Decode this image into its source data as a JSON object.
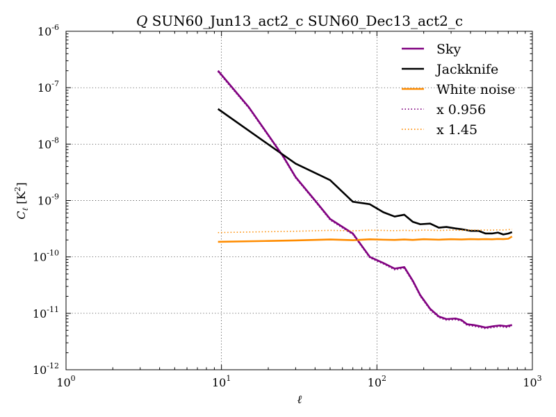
{
  "chart_data": {
    "type": "line",
    "title": {
      "symbol": "Q",
      "text": " SUN60_Jun13_act2_c SUN60_Dec13_act2_c"
    },
    "xlabel": "ℓ",
    "ylabel": {
      "base": "C",
      "sub": "ℓ",
      "unit_open": " [K",
      "unit_sup": "2",
      "unit_close": "]"
    },
    "xscale": "log",
    "yscale": "log",
    "xlim": [
      1,
      1000
    ],
    "ylim": [
      1e-12,
      1e-06
    ],
    "x_ticks": [
      {
        "value": 1,
        "base": "10",
        "exp": "0"
      },
      {
        "value": 10,
        "base": "10",
        "exp": "1"
      },
      {
        "value": 100,
        "base": "10",
        "exp": "2"
      },
      {
        "value": 1000,
        "base": "10",
        "exp": "3"
      }
    ],
    "y_ticks": [
      {
        "value": 1e-12,
        "base": "10",
        "exp": "-12"
      },
      {
        "value": 1e-11,
        "base": "10",
        "exp": "-11"
      },
      {
        "value": 1e-10,
        "base": "10",
        "exp": "-10"
      },
      {
        "value": 1e-09,
        "base": "10",
        "exp": "-9"
      },
      {
        "value": 1e-08,
        "base": "10",
        "exp": "-8"
      },
      {
        "value": 1e-07,
        "base": "10",
        "exp": "-7"
      },
      {
        "value": 1e-06,
        "base": "10",
        "exp": "-6"
      }
    ],
    "grid": true,
    "legend_position": "top-right",
    "series": [
      {
        "name": "Sky",
        "color": "#800080",
        "style": "solid",
        "x": [
          9.5,
          15,
          20,
          25,
          30,
          40,
          50,
          70,
          90,
          110,
          130,
          150,
          170,
          190,
          220,
          250,
          280,
          320,
          350,
          380,
          420,
          460,
          500,
          560,
          620,
          680,
          740
        ],
        "y": [
          2e-07,
          4.5e-08,
          1.45e-08,
          6e-09,
          2.6e-09,
          1e-09,
          4.7e-10,
          2.6e-10,
          1e-10,
          7.8e-11,
          6.2e-11,
          6.6e-11,
          3.8e-11,
          2.1e-11,
          1.2e-11,
          8.8e-12,
          7.9e-12,
          8.1e-12,
          7.6e-12,
          6.4e-12,
          6.2e-12,
          5.9e-12,
          5.6e-12,
          5.9e-12,
          6.1e-12,
          5.9e-12,
          6.2e-12
        ]
      },
      {
        "name": "Jackknife",
        "color": "#000000",
        "style": "solid",
        "x": [
          9.5,
          30,
          50,
          70,
          90,
          110,
          130,
          150,
          170,
          190,
          220,
          250,
          280,
          320,
          350,
          400,
          450,
          500,
          550,
          600,
          650,
          700,
          740
        ],
        "y": [
          4.2e-08,
          4.5e-09,
          2.3e-09,
          9.5e-10,
          8.6e-10,
          6.2e-10,
          5.2e-10,
          5.6e-10,
          4.2e-10,
          3.8e-10,
          3.9e-10,
          3.3e-10,
          3.4e-10,
          3.2e-10,
          3.1e-10,
          2.9e-10,
          2.9e-10,
          2.6e-10,
          2.6e-10,
          2.7e-10,
          2.5e-10,
          2.6e-10,
          2.75e-10
        ]
      },
      {
        "name": "White noise",
        "color": "#ff8c00",
        "style": "solid",
        "x": [
          9.5,
          20,
          30,
          50,
          70,
          90,
          110,
          130,
          150,
          170,
          200,
          250,
          300,
          350,
          400,
          450,
          500,
          550,
          600,
          650,
          700,
          740
        ],
        "y": [
          1.85e-10,
          1.92e-10,
          1.96e-10,
          2.04e-10,
          1.98e-10,
          2.05e-10,
          2.02e-10,
          2e-10,
          2.04e-10,
          2e-10,
          2.06e-10,
          2.02e-10,
          2.06e-10,
          2.04e-10,
          2.07e-10,
          2.05e-10,
          2.07e-10,
          2.05e-10,
          2.08e-10,
          2.07e-10,
          2.1e-10,
          2.3e-10
        ]
      },
      {
        "name": "x 0.956",
        "color": "#800080",
        "style": "dotted",
        "x": [
          9.5,
          15,
          20,
          25,
          30,
          40,
          50,
          70,
          90,
          110,
          130,
          150,
          170,
          190,
          220,
          250,
          280,
          320,
          350,
          380,
          420,
          460,
          500,
          560,
          620,
          680,
          740
        ],
        "y": [
          1.91e-07,
          4.3e-08,
          1.39e-08,
          5.74e-09,
          2.49e-09,
          9.6e-10,
          4.5e-10,
          2.49e-10,
          9.6e-11,
          7.5e-11,
          5.9e-11,
          6.3e-11,
          3.6e-11,
          2e-11,
          1.15e-11,
          8.4e-12,
          7.55e-12,
          7.7e-12,
          7.3e-12,
          6.1e-12,
          5.9e-12,
          5.6e-12,
          5.35e-12,
          5.6e-12,
          5.8e-12,
          5.6e-12,
          5.9e-12
        ]
      },
      {
        "name": "x 1.45",
        "color": "#ff8c00",
        "style": "dotted",
        "x": [
          9.5,
          20,
          30,
          50,
          70,
          90,
          110,
          130,
          150,
          170,
          200,
          250,
          300,
          350,
          400,
          450,
          500,
          550,
          600,
          650,
          700,
          740
        ],
        "y": [
          2.7e-10,
          2.8e-10,
          2.85e-10,
          2.96e-10,
          2.9e-10,
          2.98e-10,
          2.95e-10,
          2.92e-10,
          2.96e-10,
          2.92e-10,
          2.99e-10,
          2.94e-10,
          2.99e-10,
          2.96e-10,
          3e-10,
          2.98e-10,
          3e-10,
          2.98e-10,
          3.02e-10,
          3e-10,
          3.05e-10,
          3.1e-10
        ]
      }
    ]
  }
}
